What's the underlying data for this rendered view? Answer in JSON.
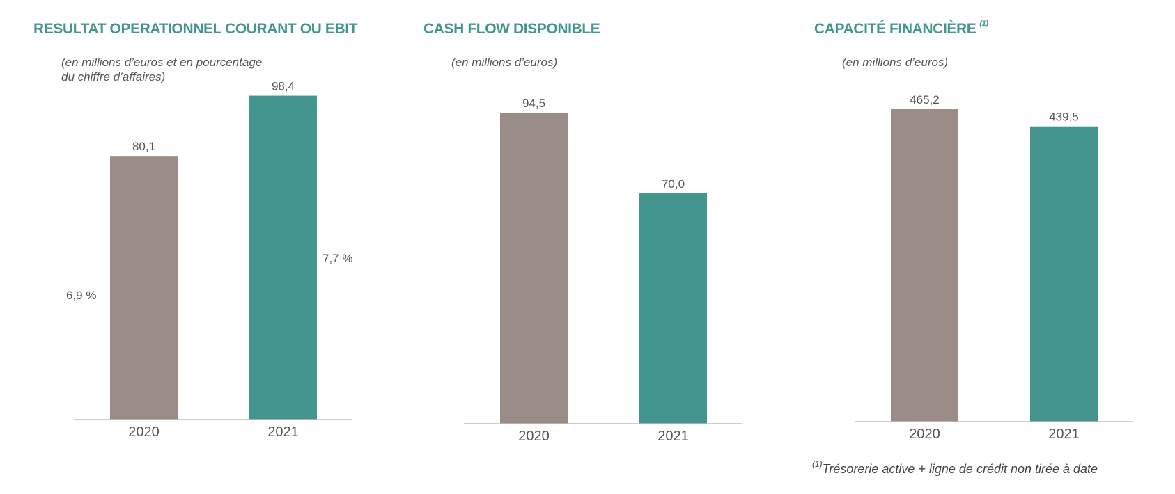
{
  "colors": {
    "accent": "#45958f",
    "bar_2020": "#9a8c87",
    "bar_2021": "#45958f",
    "axis": "#c8b9b5"
  },
  "footnote": {
    "marker": "(1)",
    "text": "Trésorerie active + ligne de crédit non tirée à date"
  },
  "chart_data": [
    {
      "type": "bar",
      "title": "RESULTAT OPERATIONNEL COURANT OU EBIT",
      "subtitle": "(en millions d’euros et en pourcentage\ndu chiffre d’affaires)",
      "categories": [
        "2020",
        "2021"
      ],
      "values": [
        80.1,
        98.4
      ],
      "value_labels": [
        "80,1",
        "98,4"
      ],
      "percent_labels": [
        "6,9 %",
        "7,7 %"
      ]
    },
    {
      "type": "bar",
      "title": "CASH FLOW DISPONIBLE",
      "subtitle": "(en millions d’euros)",
      "categories": [
        "2020",
        "2021"
      ],
      "values": [
        94.5,
        70.0
      ],
      "value_labels": [
        "94,5",
        "70,0"
      ]
    },
    {
      "type": "bar",
      "title": "CAPACITÉ FINANCIÈRE",
      "title_note": "(1)",
      "subtitle": "(en millions d’euros)",
      "categories": [
        "2020",
        "2021"
      ],
      "values": [
        465.2,
        439.5
      ],
      "value_labels": [
        "465,2",
        "439,5"
      ]
    }
  ]
}
